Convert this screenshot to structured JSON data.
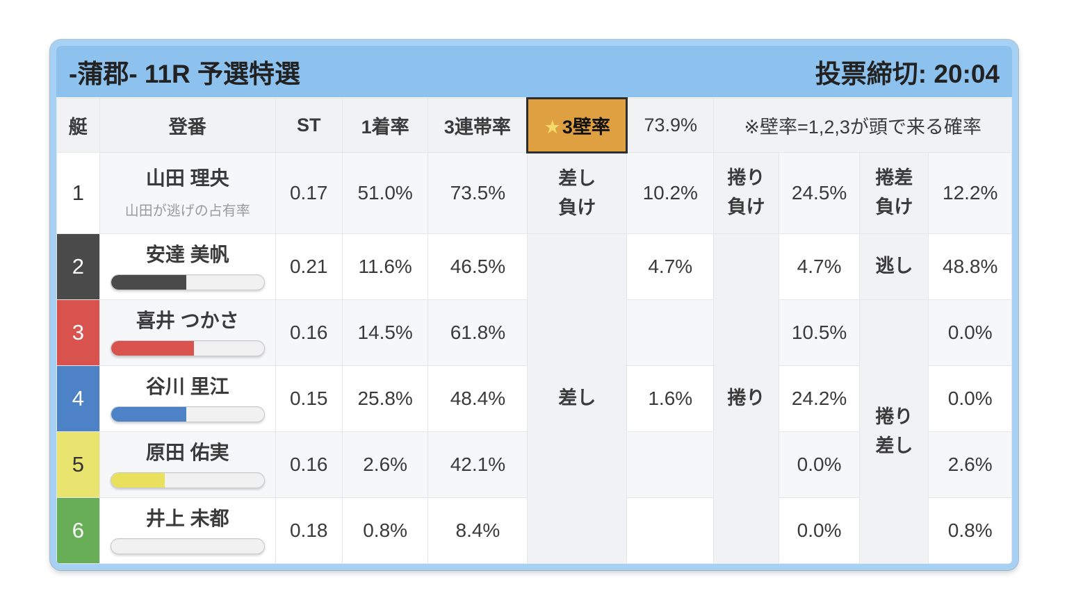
{
  "race_header": {
    "title": "-蒲郡- 11R 予選特選",
    "deadline": "投票締切: 20:04"
  },
  "table": {
    "headers": {
      "boat": "艇",
      "reg": "登番",
      "st": "ST",
      "win": "1着率",
      "top3": "3連帯率"
    },
    "wall": {
      "star": "★",
      "label": "3壁率",
      "value": "73.9%",
      "note": "※壁率=1,2,3が頭で来る確率"
    },
    "merged": {
      "sashi": "差し",
      "makuri": "捲り",
      "makurizashi_a": "捲り",
      "makurizashi_b": "差し"
    },
    "rows": [
      {
        "boat": "1",
        "name": "山田 理央",
        "sub": "山田が逃げの占有率",
        "st": "0.17",
        "win": "51.0%",
        "top3": "73.5%",
        "l1a": "差し",
        "l1b": "負け",
        "v1": "10.2%",
        "l2a": "捲り",
        "l2b": "負け",
        "v2": "24.5%",
        "l3a": "捲差",
        "l3b": "負け",
        "v3": "12.2%",
        "boat_bg": "#ffffff",
        "boat_fg": "#333333"
      },
      {
        "boat": "2",
        "name": "安達 美帆",
        "bar": 49,
        "bar_color": "#4a4a4a",
        "st": "0.21",
        "win": "11.6%",
        "top3": "46.5%",
        "v1": "4.7%",
        "v2": "4.7%",
        "l3": "逃し",
        "v3": "48.8%",
        "boat_bg": "#4a4a4a",
        "boat_fg": "#ffffff"
      },
      {
        "boat": "3",
        "name": "喜井 つかさ",
        "bar": 54,
        "bar_color": "#d9534e",
        "st": "0.16",
        "win": "14.5%",
        "top3": "61.8%",
        "v1": "",
        "v2": "10.5%",
        "v3": "0.0%",
        "boat_bg": "#d9534e",
        "boat_fg": "#ffffff"
      },
      {
        "boat": "4",
        "name": "谷川 里江",
        "bar": 49,
        "bar_color": "#4d82c6",
        "st": "0.15",
        "win": "25.8%",
        "top3": "48.4%",
        "v1": "1.6%",
        "v2": "24.2%",
        "v3": "0.0%",
        "boat_bg": "#4d82c6",
        "boat_fg": "#ffffff"
      },
      {
        "boat": "5",
        "name": "原田 佑実",
        "bar": 35,
        "bar_color": "#e9e15e",
        "st": "0.16",
        "win": "2.6%",
        "top3": "42.1%",
        "v1": "",
        "v2": "0.0%",
        "v3": "2.6%",
        "boat_bg": "#e9e470",
        "boat_fg": "#333333"
      },
      {
        "boat": "6",
        "name": "井上 未都",
        "bar": 0,
        "bar_color": "#cccccc",
        "st": "0.18",
        "win": "0.8%",
        "top3": "8.4%",
        "v1": "",
        "v2": "0.0%",
        "v3": "0.8%",
        "boat_bg": "#68ae57",
        "boat_fg": "#ffffff"
      }
    ]
  },
  "colors": {
    "card_border": "#a7d0f5",
    "header_band": "#8ec2ee",
    "wall_button_bg": "#dfa041",
    "wall_button_border": "#2e2e2e",
    "star": "#f2da6b",
    "row_stripe": "#f6f7f9",
    "label_cell_bg": "#f1f2f4"
  }
}
